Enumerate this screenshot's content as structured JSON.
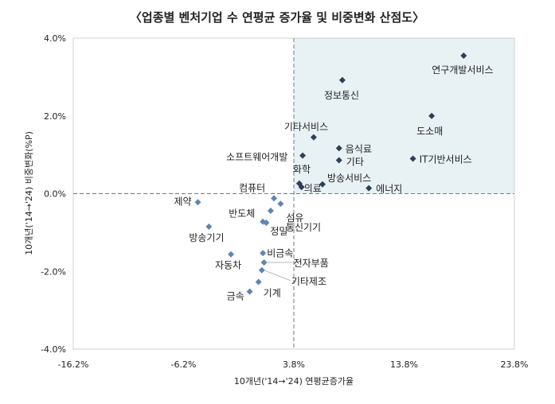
{
  "chart_data": {
    "type": "scatter",
    "title": "〈업종별 벤처기업 수 연평균 증가율 및 비중변화 산점도〉",
    "xlabel": "10개년('14→'24) 연평균증가율",
    "ylabel": "10개년('14→'24) 비중변화(%P)",
    "xlim": [
      -16.2,
      23.8
    ],
    "ylim": [
      -4.0,
      4.0
    ],
    "x_ticks": [
      -16.2,
      -6.2,
      3.8,
      13.8,
      23.8
    ],
    "x_tick_labels": [
      "-16.2%",
      "-6.2%",
      "3.8%",
      "13.8%",
      "23.8%"
    ],
    "y_ticks": [
      4.0,
      2.0,
      0.0,
      -2.0,
      -4.0
    ],
    "y_tick_labels": [
      "4.0%",
      "2.0%",
      "0.0%",
      "-2.0%",
      "-4.0%"
    ],
    "reference_lines": {
      "x": 3.8,
      "y": 0.0
    },
    "highlight_quadrant": "top-right",
    "grid": false,
    "colors": {
      "positive": "#2d3e57",
      "negative": "#5f86ae",
      "quadrant_fill": "#e8f1f4",
      "ref_line": "#6a7a8a"
    },
    "points": [
      {
        "label": "연구개발서비스",
        "x": 19.2,
        "y": 3.55
      },
      {
        "label": "정보통신",
        "x": 8.2,
        "y": 2.92
      },
      {
        "label": "도소매",
        "x": 16.3,
        "y": 2.0
      },
      {
        "label": "기타서비스",
        "x": 5.6,
        "y": 1.45
      },
      {
        "label": "음식료",
        "x": 7.9,
        "y": 1.17
      },
      {
        "label": "IT기반서비스",
        "x": 14.6,
        "y": 0.9
      },
      {
        "label": "소프트웨어개발",
        "x": 4.6,
        "y": 0.98
      },
      {
        "label": "기타",
        "x": 7.9,
        "y": 0.86
      },
      {
        "label": "화학",
        "x": 4.3,
        "y": 0.26
      },
      {
        "label": "방송서비스",
        "x": 6.4,
        "y": 0.24
      },
      {
        "label": "의료",
        "x": 4.5,
        "y": 0.17
      },
      {
        "label": "에너지",
        "x": 10.6,
        "y": 0.14
      },
      {
        "label": "컴퓨터",
        "x": 2.0,
        "y": -0.12
      },
      {
        "label": "섬유",
        "x": 2.6,
        "y": -0.26
      },
      {
        "label": "제약",
        "x": -4.9,
        "y": -0.22
      },
      {
        "label": "통신기기",
        "x": 1.7,
        "y": -0.44
      },
      {
        "label": "반도체",
        "x": 1.0,
        "y": -0.72
      },
      {
        "label": "정밀",
        "x": 1.3,
        "y": -0.75
      },
      {
        "label": "방송기기",
        "x": -3.9,
        "y": -0.85
      },
      {
        "label": "자동차",
        "x": -1.9,
        "y": -1.56
      },
      {
        "label": "비금속",
        "x": 1.0,
        "y": -1.53
      },
      {
        "label": "전자부품",
        "x": 1.1,
        "y": -1.77
      },
      {
        "label": "기타제조",
        "x": 0.9,
        "y": -1.97
      },
      {
        "label": "기계",
        "x": 0.6,
        "y": -2.27
      },
      {
        "label": "금속",
        "x": -0.2,
        "y": -2.52
      }
    ]
  }
}
